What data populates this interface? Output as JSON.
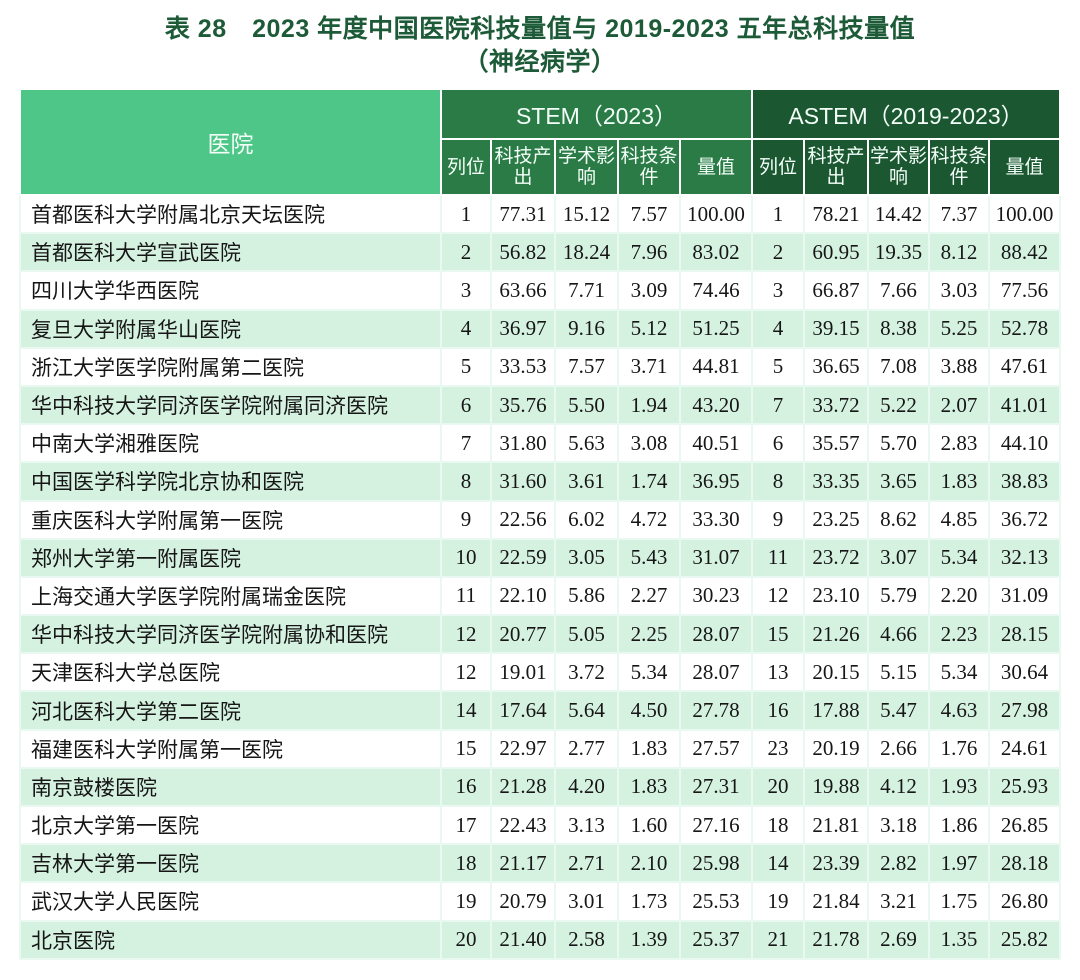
{
  "page": {
    "title_line1": "表 28　2023 年度中国医院科技量值与 2019-2023 五年总科技量值",
    "title_line2": "（神经病学）"
  },
  "table": {
    "hospital_header": "医院",
    "group_headers": {
      "stem": "STEM（2023）",
      "astem": "ASTEM（2019-2023）"
    },
    "sub_headers": [
      "列位",
      "科技产出",
      "学术影响",
      "科技条件",
      "量值"
    ],
    "rows": [
      {
        "hospital": "首都医科大学附属北京天坛医院",
        "stem": [
          "1",
          "77.31",
          "15.12",
          "7.57",
          "100.00"
        ],
        "astem": [
          "1",
          "78.21",
          "14.42",
          "7.37",
          "100.00"
        ]
      },
      {
        "hospital": "首都医科大学宣武医院",
        "stem": [
          "2",
          "56.82",
          "18.24",
          "7.96",
          "83.02"
        ],
        "astem": [
          "2",
          "60.95",
          "19.35",
          "8.12",
          "88.42"
        ]
      },
      {
        "hospital": "四川大学华西医院",
        "stem": [
          "3",
          "63.66",
          "7.71",
          "3.09",
          "74.46"
        ],
        "astem": [
          "3",
          "66.87",
          "7.66",
          "3.03",
          "77.56"
        ]
      },
      {
        "hospital": "复旦大学附属华山医院",
        "stem": [
          "4",
          "36.97",
          "9.16",
          "5.12",
          "51.25"
        ],
        "astem": [
          "4",
          "39.15",
          "8.38",
          "5.25",
          "52.78"
        ]
      },
      {
        "hospital": "浙江大学医学院附属第二医院",
        "stem": [
          "5",
          "33.53",
          "7.57",
          "3.71",
          "44.81"
        ],
        "astem": [
          "5",
          "36.65",
          "7.08",
          "3.88",
          "47.61"
        ]
      },
      {
        "hospital": "华中科技大学同济医学院附属同济医院",
        "stem": [
          "6",
          "35.76",
          "5.50",
          "1.94",
          "43.20"
        ],
        "astem": [
          "7",
          "33.72",
          "5.22",
          "2.07",
          "41.01"
        ]
      },
      {
        "hospital": "中南大学湘雅医院",
        "stem": [
          "7",
          "31.80",
          "5.63",
          "3.08",
          "40.51"
        ],
        "astem": [
          "6",
          "35.57",
          "5.70",
          "2.83",
          "44.10"
        ]
      },
      {
        "hospital": "中国医学科学院北京协和医院",
        "stem": [
          "8",
          "31.60",
          "3.61",
          "1.74",
          "36.95"
        ],
        "astem": [
          "8",
          "33.35",
          "3.65",
          "1.83",
          "38.83"
        ]
      },
      {
        "hospital": "重庆医科大学附属第一医院",
        "stem": [
          "9",
          "22.56",
          "6.02",
          "4.72",
          "33.30"
        ],
        "astem": [
          "9",
          "23.25",
          "8.62",
          "4.85",
          "36.72"
        ]
      },
      {
        "hospital": "郑州大学第一附属医院",
        "stem": [
          "10",
          "22.59",
          "3.05",
          "5.43",
          "31.07"
        ],
        "astem": [
          "11",
          "23.72",
          "3.07",
          "5.34",
          "32.13"
        ]
      },
      {
        "hospital": "上海交通大学医学院附属瑞金医院",
        "stem": [
          "11",
          "22.10",
          "5.86",
          "2.27",
          "30.23"
        ],
        "astem": [
          "12",
          "23.10",
          "5.79",
          "2.20",
          "31.09"
        ]
      },
      {
        "hospital": "华中科技大学同济医学院附属协和医院",
        "stem": [
          "12",
          "20.77",
          "5.05",
          "2.25",
          "28.07"
        ],
        "astem": [
          "15",
          "21.26",
          "4.66",
          "2.23",
          "28.15"
        ]
      },
      {
        "hospital": "天津医科大学总医院",
        "stem": [
          "12",
          "19.01",
          "3.72",
          "5.34",
          "28.07"
        ],
        "astem": [
          "13",
          "20.15",
          "5.15",
          "5.34",
          "30.64"
        ]
      },
      {
        "hospital": "河北医科大学第二医院",
        "stem": [
          "14",
          "17.64",
          "5.64",
          "4.50",
          "27.78"
        ],
        "astem": [
          "16",
          "17.88",
          "5.47",
          "4.63",
          "27.98"
        ]
      },
      {
        "hospital": "福建医科大学附属第一医院",
        "stem": [
          "15",
          "22.97",
          "2.77",
          "1.83",
          "27.57"
        ],
        "astem": [
          "23",
          "20.19",
          "2.66",
          "1.76",
          "24.61"
        ]
      },
      {
        "hospital": "南京鼓楼医院",
        "stem": [
          "16",
          "21.28",
          "4.20",
          "1.83",
          "27.31"
        ],
        "astem": [
          "20",
          "19.88",
          "4.12",
          "1.93",
          "25.93"
        ]
      },
      {
        "hospital": "北京大学第一医院",
        "stem": [
          "17",
          "22.43",
          "3.13",
          "1.60",
          "27.16"
        ],
        "astem": [
          "18",
          "21.81",
          "3.18",
          "1.86",
          "26.85"
        ]
      },
      {
        "hospital": "吉林大学第一医院",
        "stem": [
          "18",
          "21.17",
          "2.71",
          "2.10",
          "25.98"
        ],
        "astem": [
          "14",
          "23.39",
          "2.82",
          "1.97",
          "28.18"
        ]
      },
      {
        "hospital": "武汉大学人民医院",
        "stem": [
          "19",
          "20.79",
          "3.01",
          "1.73",
          "25.53"
        ],
        "astem": [
          "19",
          "21.84",
          "3.21",
          "1.75",
          "26.80"
        ]
      },
      {
        "hospital": "北京医院",
        "stem": [
          "20",
          "21.40",
          "2.58",
          "1.39",
          "25.37"
        ],
        "astem": [
          "21",
          "21.78",
          "2.69",
          "1.35",
          "25.82"
        ]
      }
    ]
  },
  "colors": {
    "title_text": "#1d5a37",
    "hospital_header_bg": "#4ec687",
    "stem_header_bg": "#2a7b45",
    "astem_header_bg": "#1b5731",
    "row_bg": "#ffffff",
    "row_alt_bg": "#d5f2e1"
  }
}
